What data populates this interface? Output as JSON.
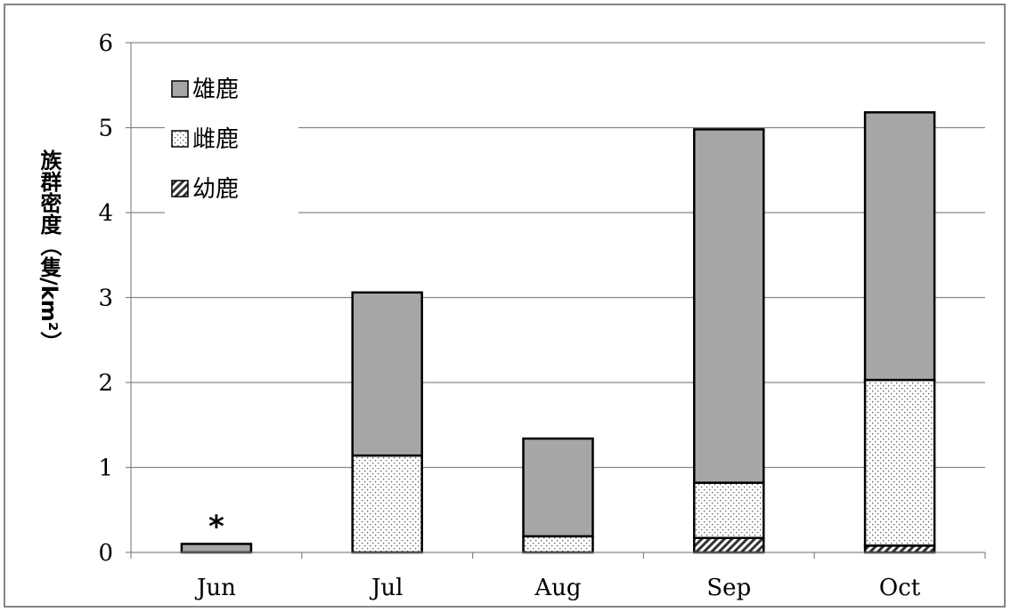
{
  "chart_data": {
    "type": "bar",
    "stacked": true,
    "categories": [
      "Jun",
      "Jul",
      "Aug",
      "Sep",
      "Oct"
    ],
    "series": [
      {
        "name": "幼鹿",
        "values": [
          0,
          0,
          0,
          0.17,
          0.08
        ],
        "color": "#ffffff",
        "pattern": "diagonal-hatch"
      },
      {
        "name": "雌鹿",
        "values": [
          0,
          1.14,
          0.19,
          0.65,
          1.95
        ],
        "color": "#ffffff",
        "pattern": "dots"
      },
      {
        "name": "雄鹿",
        "values": [
          0.1,
          1.92,
          1.15,
          4.16,
          3.15
        ],
        "color": "#a6a6a6",
        "pattern": "solid"
      }
    ],
    "legend_order": [
      "雄鹿",
      "雌鹿",
      "幼鹿"
    ],
    "legend_position": "top-left",
    "ylabel": "族群密度（隻/km²）",
    "xlabel": "",
    "title": "",
    "ylim": [
      0,
      6
    ],
    "yticks": [
      0,
      1,
      2,
      3,
      4,
      5,
      6
    ],
    "grid": true,
    "annotations": [
      {
        "category": "Jun",
        "text": "*"
      }
    ]
  }
}
